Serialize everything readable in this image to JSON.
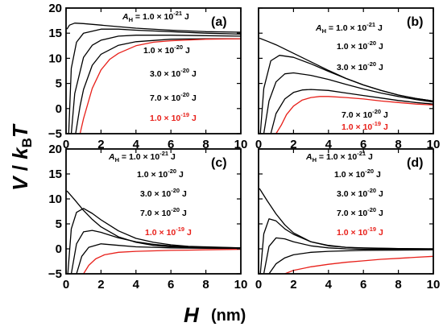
{
  "figure": {
    "ylabel": {
      "v": "V",
      "slash": " / ",
      "k": "k",
      "sub": "B",
      "t": "T"
    },
    "xlabel": {
      "h": "H",
      "unit": "(nm)"
    }
  },
  "colors": {
    "black": "#000000",
    "highlight": "#e8201a"
  },
  "chart_data": [
    {
      "panel": "(a)",
      "type": "line",
      "xlim": [
        0,
        10
      ],
      "ylim": [
        -5,
        20
      ],
      "xticks": [
        "0",
        "2",
        "4",
        "6",
        "8",
        "10"
      ],
      "yticks": [
        "-5",
        "0",
        "5",
        "10",
        "15",
        "20"
      ],
      "annotations": [
        {
          "base": "A",
          "sub": "H",
          "text": " = 1.0 × 10",
          "exp": "-21",
          "unit": " J",
          "color": "#000000"
        },
        {
          "text": "1.0 × 10",
          "exp": "-20",
          "unit": " J",
          "color": "#000000"
        },
        {
          "text": "3.0 × 10",
          "exp": "-20",
          "unit": " J",
          "color": "#000000"
        },
        {
          "text": "7.0 × 10",
          "exp": "-20",
          "unit": " J",
          "color": "#000000"
        },
        {
          "text": "1.0 × 10",
          "exp": "-19",
          "unit": " J",
          "color": "#e8201a"
        }
      ],
      "series": [
        {
          "color": "#000000",
          "x": [
            0.05,
            0.2,
            0.5,
            1,
            2,
            4,
            6,
            8,
            10
          ],
          "y": [
            15.8,
            16.6,
            17.0,
            16.9,
            16.6,
            16.0,
            15.6,
            15.3,
            15.2
          ]
        },
        {
          "color": "#000000",
          "x": [
            0.15,
            0.3,
            0.6,
            1,
            2,
            3,
            4,
            6,
            8,
            10
          ],
          "y": [
            -5,
            8.0,
            13.2,
            15.0,
            15.8,
            15.8,
            15.6,
            15.3,
            15.0,
            14.8
          ]
        },
        {
          "color": "#000000",
          "x": [
            0.3,
            0.5,
            1,
            1.5,
            2,
            3,
            4,
            6,
            8,
            10
          ],
          "y": [
            -5,
            3.0,
            10.2,
            12.6,
            13.6,
            14.4,
            14.6,
            14.6,
            14.5,
            14.4
          ]
        },
        {
          "color": "#000000",
          "x": [
            0.55,
            0.8,
            1,
            1.5,
            2,
            3,
            4,
            6,
            8,
            10
          ],
          "y": [
            -5,
            0.5,
            3.8,
            8.6,
            10.8,
            12.6,
            13.3,
            13.8,
            13.9,
            13.9
          ]
        },
        {
          "color": "#e8201a",
          "x": [
            0.8,
            1,
            1.5,
            2,
            2.5,
            3,
            4,
            5,
            6,
            8,
            10
          ],
          "y": [
            -5,
            -2.0,
            4.0,
            7.7,
            9.8,
            11.0,
            12.5,
            13.2,
            13.5,
            13.8,
            13.9
          ]
        }
      ]
    },
    {
      "panel": "(b)",
      "type": "line",
      "xlim": [
        0,
        10
      ],
      "ylim": [
        -5,
        20
      ],
      "xticks": [
        "0",
        "2",
        "4",
        "6",
        "8",
        "10"
      ],
      "yticks": [
        "-5",
        "0",
        "5",
        "10",
        "15",
        "20"
      ],
      "annotations": [
        {
          "base": "A",
          "sub": "H",
          "text": " = 1.0 × 10",
          "exp": "-21",
          "unit": " J",
          "color": "#000000"
        },
        {
          "text": "1.0 × 10",
          "exp": "-20",
          "unit": " J",
          "color": "#000000"
        },
        {
          "text": "3.0 × 10",
          "exp": "-20",
          "unit": " J",
          "color": "#000000"
        },
        {
          "text": "7.0 × 10",
          "exp": "-20",
          "unit": " J",
          "color": "#000000"
        },
        {
          "text": "1.0 × 10",
          "exp": "-19",
          "unit": " J",
          "color": "#e8201a"
        }
      ],
      "series": [
        {
          "color": "#000000",
          "x": [
            0.05,
            0.5,
            1,
            2,
            3,
            4,
            5,
            6,
            7,
            8,
            9,
            10
          ],
          "y": [
            14.0,
            13.4,
            12.7,
            11.0,
            9.3,
            7.6,
            6.0,
            4.7,
            3.6,
            2.7,
            2.0,
            1.5
          ]
        },
        {
          "color": "#000000",
          "x": [
            0.1,
            0.3,
            0.7,
            1.2,
            2,
            3,
            4,
            5,
            6,
            7,
            8,
            9,
            10
          ],
          "y": [
            -5,
            4.0,
            9.5,
            10.6,
            10.2,
            8.9,
            7.4,
            6.0,
            4.7,
            3.6,
            2.7,
            2.0,
            1.5
          ]
        },
        {
          "color": "#000000",
          "x": [
            0.3,
            0.6,
            1,
            1.5,
            2,
            3,
            4,
            5,
            6,
            7,
            8,
            9,
            10
          ],
          "y": [
            -5,
            1.5,
            5.3,
            6.9,
            7.1,
            6.6,
            5.8,
            4.8,
            3.9,
            3.1,
            2.4,
            1.8,
            1.3
          ]
        },
        {
          "color": "#000000",
          "x": [
            0.7,
            1,
            1.5,
            2,
            2.5,
            3,
            4,
            5,
            6,
            7,
            8,
            9,
            10
          ],
          "y": [
            -5,
            -1.0,
            1.9,
            3.2,
            3.7,
            3.8,
            3.6,
            3.1,
            2.6,
            2.1,
            1.6,
            1.2,
            0.9
          ]
        },
        {
          "color": "#e8201a",
          "x": [
            1.0,
            1.3,
            1.6,
            2,
            2.5,
            3,
            3.5,
            4,
            5,
            6,
            7,
            8,
            9,
            10
          ],
          "y": [
            -5,
            -3.3,
            -1.2,
            0.5,
            1.7,
            2.2,
            2.4,
            2.4,
            2.2,
            1.9,
            1.5,
            1.2,
            0.9,
            0.7
          ]
        }
      ]
    },
    {
      "panel": "(c)",
      "type": "line",
      "xlim": [
        0,
        10
      ],
      "ylim": [
        -5,
        20
      ],
      "xticks": [
        "0",
        "2",
        "4",
        "6",
        "8",
        "10"
      ],
      "yticks": [
        "-5",
        "0",
        "5",
        "10",
        "15",
        "20"
      ],
      "annotations": [
        {
          "base": "A",
          "sub": "H",
          "text": " = 1.0 × 10",
          "exp": "-21",
          "unit": " J",
          "color": "#000000"
        },
        {
          "text": "1.0 × 10",
          "exp": "-20",
          "unit": " J",
          "color": "#000000"
        },
        {
          "text": "3.0 × 10",
          "exp": "-20",
          "unit": " J",
          "color": "#000000"
        },
        {
          "text": "7.0 × 10",
          "exp": "-20",
          "unit": " J",
          "color": "#000000"
        },
        {
          "text": "1.0 × 10",
          "exp": "-19",
          "unit": " J",
          "color": "#e8201a"
        }
      ],
      "series": [
        {
          "color": "#000000",
          "x": [
            0.05,
            0.5,
            1,
            1.5,
            2,
            3,
            4,
            5,
            6,
            7,
            8,
            9,
            10
          ],
          "y": [
            11.6,
            9.8,
            7.7,
            5.9,
            4.4,
            2.4,
            1.3,
            0.7,
            0.4,
            0.3,
            0.2,
            0.15,
            0.1
          ]
        },
        {
          "color": "#000000",
          "x": [
            0.1,
            0.3,
            0.6,
            1,
            1.5,
            2,
            3,
            4,
            5,
            6,
            7,
            8,
            10
          ],
          "y": [
            -5,
            4.0,
            7.3,
            8.1,
            7.1,
            5.8,
            3.6,
            2.1,
            1.3,
            0.8,
            0.5,
            0.4,
            0.2
          ]
        },
        {
          "color": "#000000",
          "x": [
            0.3,
            0.6,
            1,
            1.5,
            2,
            3,
            4,
            5,
            6,
            8,
            10
          ],
          "y": [
            -5,
            1.0,
            3.4,
            3.7,
            3.3,
            2.2,
            1.4,
            0.9,
            0.6,
            0.3,
            0.2
          ]
        },
        {
          "color": "#000000",
          "x": [
            0.6,
            0.9,
            1.3,
            2,
            3,
            4,
            5,
            6,
            8,
            10
          ],
          "y": [
            -5,
            -1.5,
            0.3,
            1.0,
            0.7,
            0.4,
            0.3,
            0.2,
            0.1,
            0.05
          ]
        },
        {
          "color": "#e8201a",
          "x": [
            1.0,
            1.3,
            1.7,
            2.2,
            3,
            4,
            5,
            6,
            7,
            8,
            10
          ],
          "y": [
            -5,
            -3.3,
            -2.0,
            -1.2,
            -0.7,
            -0.5,
            -0.4,
            -0.3,
            -0.25,
            -0.2,
            -0.1
          ]
        }
      ]
    },
    {
      "panel": "(d)",
      "type": "line",
      "xlim": [
        0,
        10
      ],
      "ylim": [
        -5,
        20
      ],
      "xticks": [
        "0",
        "2",
        "4",
        "6",
        "8",
        "10"
      ],
      "yticks": [
        "-5",
        "0",
        "5",
        "10",
        "15",
        "20"
      ],
      "annotations": [
        {
          "base": "A",
          "sub": "H",
          "text": " = 1.0 × 10",
          "exp": "-21",
          "unit": " J",
          "color": "#000000"
        },
        {
          "text": "1.0 × 10",
          "exp": "-20",
          "unit": " J",
          "color": "#000000"
        },
        {
          "text": "3.0 × 10",
          "exp": "-20",
          "unit": " J",
          "color": "#000000"
        },
        {
          "text": "7.0 × 10",
          "exp": "-20",
          "unit": " J",
          "color": "#000000"
        },
        {
          "text": "1.0 × 10",
          "exp": "-19",
          "unit": " J",
          "color": "#e8201a"
        }
      ],
      "series": [
        {
          "color": "#000000",
          "x": [
            0.05,
            0.5,
            1,
            1.5,
            2,
            3,
            4,
            5,
            6,
            7,
            8,
            10
          ],
          "y": [
            12.1,
            9.6,
            7.0,
            4.8,
            3.2,
            1.4,
            0.6,
            0.3,
            0.15,
            0.1,
            0.05,
            0.0
          ]
        },
        {
          "color": "#000000",
          "x": [
            0.1,
            0.3,
            0.6,
            1,
            1.5,
            2,
            3,
            4,
            5,
            6,
            8,
            10
          ],
          "y": [
            -5,
            3.0,
            6.0,
            5.6,
            4.0,
            2.9,
            1.4,
            0.7,
            0.3,
            0.2,
            0.05,
            0.0
          ]
        },
        {
          "color": "#000000",
          "x": [
            0.3,
            0.6,
            1,
            1.5,
            2,
            3,
            4,
            5,
            6,
            8,
            10
          ],
          "y": [
            -5,
            0.5,
            2.2,
            2.0,
            1.4,
            0.6,
            0.2,
            0.0,
            -0.1,
            -0.1,
            -0.1
          ]
        },
        {
          "color": "#000000",
          "x": [
            0.6,
            1,
            1.5,
            2,
            3,
            4,
            5,
            6,
            8,
            10
          ],
          "y": [
            -5,
            -3.0,
            -1.8,
            -1.2,
            -0.7,
            -0.5,
            -0.4,
            -0.3,
            -0.25,
            -0.2
          ]
        },
        {
          "color": "#e8201a",
          "x": [
            1.5,
            2,
            3,
            4,
            5,
            6,
            7,
            8,
            9,
            10
          ],
          "y": [
            -5,
            -4.3,
            -3.6,
            -3.1,
            -2.7,
            -2.4,
            -2.1,
            -1.9,
            -1.7,
            -1.5
          ]
        }
      ]
    }
  ]
}
